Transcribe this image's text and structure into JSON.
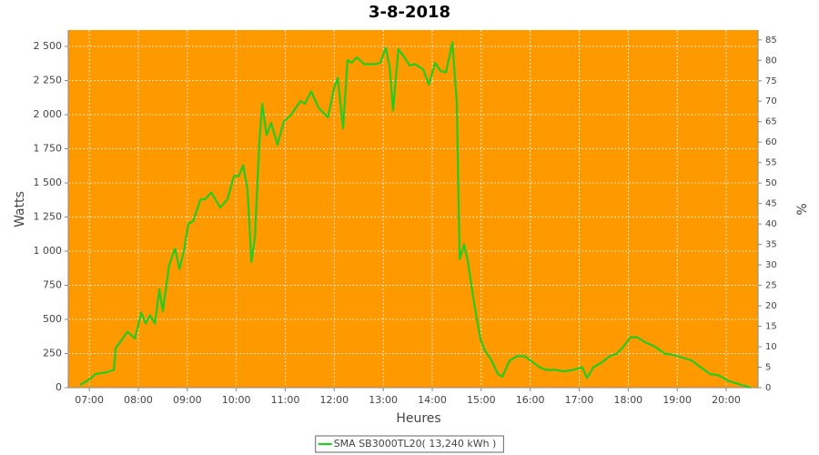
{
  "chart_data": {
    "type": "line",
    "title": "3-8-2018",
    "x_label": "Heures",
    "y_label": "Watts",
    "y2_label": "%",
    "background_color": "#ff9900",
    "grid": true,
    "legend_position": "bottom",
    "xlim": [
      6.57,
      20.65
    ],
    "xticks": [
      {
        "value": 7,
        "label": "07:00"
      },
      {
        "value": 8,
        "label": "08:00"
      },
      {
        "value": 9,
        "label": "09:00"
      },
      {
        "value": 10,
        "label": "10:00"
      },
      {
        "value": 11,
        "label": "11:00"
      },
      {
        "value": 12,
        "label": "12:00"
      },
      {
        "value": 13,
        "label": "13:00"
      },
      {
        "value": 14,
        "label": "14:00"
      },
      {
        "value": 15,
        "label": "15:00"
      },
      {
        "value": 16,
        "label": "16:00"
      },
      {
        "value": 17,
        "label": "17:00"
      },
      {
        "value": 18,
        "label": "18:00"
      },
      {
        "value": 19,
        "label": "19:00"
      },
      {
        "value": 20,
        "label": "20:00"
      }
    ],
    "ylim": [
      0,
      2620
    ],
    "yticks": [
      0,
      250,
      500,
      750,
      {
        "value": 1000,
        "label": "1 000"
      },
      {
        "value": 1250,
        "label": "1 250"
      },
      {
        "value": 1500,
        "label": "1 500"
      },
      {
        "value": 1750,
        "label": "1 750"
      },
      {
        "value": 2000,
        "label": "2 000"
      },
      {
        "value": 2250,
        "label": "2 250"
      },
      {
        "value": 2500,
        "label": "2 500"
      }
    ],
    "y2lim": [
      0,
      87.4
    ],
    "y2ticks": [
      0,
      5,
      10,
      15,
      20,
      25,
      30,
      35,
      40,
      45,
      50,
      55,
      60,
      65,
      70,
      75,
      80,
      85
    ],
    "x": [
      6.81,
      7.0,
      7.13,
      7.32,
      7.5,
      7.54,
      7.78,
      7.93,
      8.06,
      8.15,
      8.24,
      8.34,
      8.43,
      8.5,
      8.63,
      8.75,
      8.84,
      8.93,
      9.02,
      9.12,
      9.27,
      9.36,
      9.49,
      9.67,
      9.82,
      9.95,
      10.05,
      10.14,
      10.23,
      10.31,
      10.38,
      10.47,
      10.53,
      10.62,
      10.71,
      10.84,
      10.97,
      11.12,
      11.31,
      11.4,
      11.53,
      11.68,
      11.87,
      12.0,
      12.07,
      12.18,
      12.27,
      12.35,
      12.46,
      12.61,
      12.83,
      12.94,
      13.05,
      13.13,
      13.2,
      13.31,
      13.43,
      13.54,
      13.65,
      13.82,
      13.93,
      14.06,
      14.17,
      14.28,
      14.41,
      14.5,
      14.56,
      14.65,
      14.73,
      14.82,
      14.91,
      14.99,
      15.06,
      15.21,
      15.34,
      15.43,
      15.58,
      15.73,
      15.89,
      16.04,
      16.19,
      16.32,
      16.51,
      16.69,
      16.88,
      17.06,
      17.16,
      17.29,
      17.44,
      17.62,
      17.77,
      17.9,
      18.05,
      18.18,
      18.36,
      18.55,
      18.74,
      18.92,
      19.11,
      19.29,
      19.48,
      19.67,
      19.85,
      20.04,
      20.22,
      20.5
    ],
    "series": [
      {
        "name": "SMA SB3000TL20( 13,240 kWh )",
        "color": "#22cc22",
        "values": [
          20,
          60,
          100,
          110,
          130,
          290,
          410,
          360,
          550,
          470,
          530,
          470,
          720,
          560,
          900,
          1020,
          870,
          1000,
          1200,
          1220,
          1380,
          1380,
          1430,
          1320,
          1380,
          1550,
          1550,
          1630,
          1450,
          920,
          1100,
          1800,
          2080,
          1850,
          1940,
          1780,
          1950,
          2000,
          2100,
          2080,
          2170,
          2050,
          1980,
          2200,
          2270,
          1900,
          2400,
          2380,
          2420,
          2370,
          2370,
          2380,
          2490,
          2350,
          2030,
          2480,
          2420,
          2360,
          2370,
          2330,
          2220,
          2380,
          2320,
          2310,
          2530,
          2100,
          940,
          1050,
          920,
          700,
          500,
          350,
          280,
          200,
          100,
          80,
          200,
          230,
          230,
          190,
          150,
          130,
          130,
          120,
          130,
          150,
          70,
          150,
          180,
          230,
          250,
          300,
          370,
          370,
          330,
          300,
          250,
          240,
          220,
          200,
          150,
          100,
          90,
          50,
          30,
          0
        ]
      }
    ]
  }
}
